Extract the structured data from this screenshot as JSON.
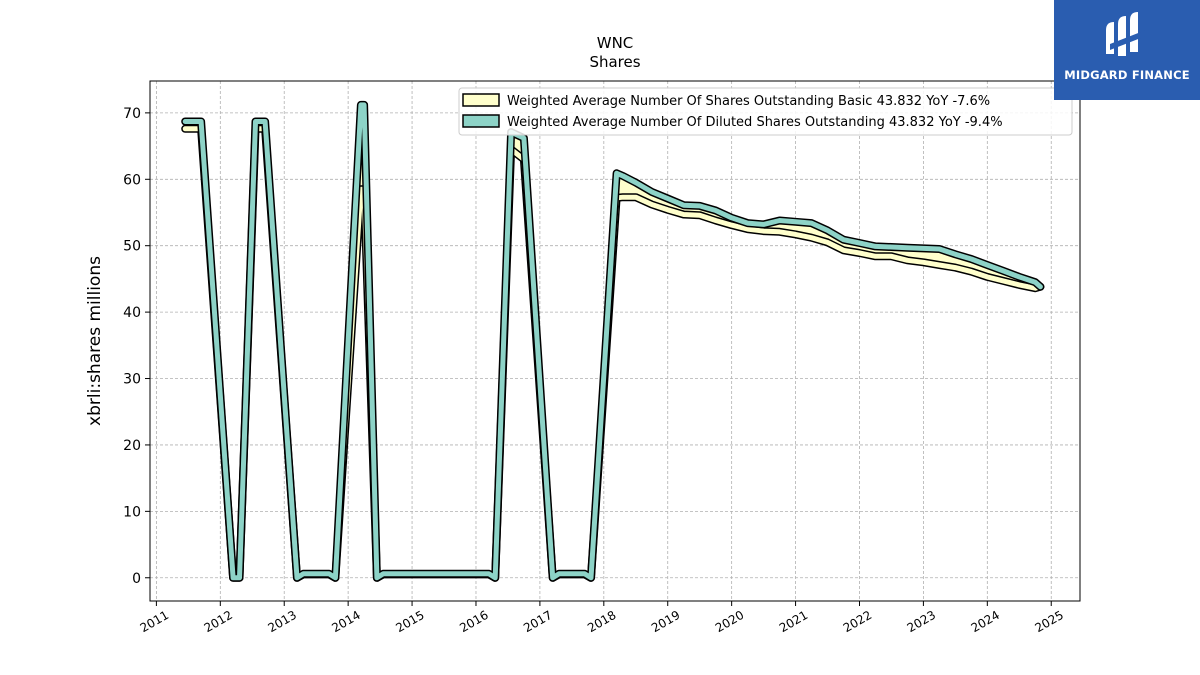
{
  "chart_data": {
    "type": "line",
    "title": "WNC",
    "subtitle": "Shares",
    "ylabel": "xbrli:shares millions",
    "xlabel": "",
    "ylim": [
      -3.5,
      74.8
    ],
    "xlim": [
      2010.9,
      2025.45
    ],
    "yticks": [
      0,
      10,
      20,
      30,
      40,
      50,
      60,
      70
    ],
    "xticks": [
      "2011",
      "2012",
      "2013",
      "2014",
      "2015",
      "2016",
      "2017",
      "2018",
      "2019",
      "2020",
      "2021",
      "2022",
      "2023",
      "2024",
      "2025"
    ],
    "grid": true,
    "legend_position": "top-right",
    "series": [
      {
        "name": "Weighted Average Number Of Shares Outstanding Basic  43.832 YoY -7.6%",
        "color": "#ffffcc",
        "x": [
          2011.45,
          2011.7,
          2012.2,
          2012.3,
          2012.55,
          2012.7,
          2013.2,
          2013.3,
          2013.7,
          2013.8,
          2014.2,
          2014.25,
          2014.45,
          2014.55,
          2016.2,
          2016.3,
          2016.55,
          2016.75,
          2017.2,
          2017.3,
          2017.7,
          2017.8,
          2018.2,
          2018.3,
          2018.5,
          2018.75,
          2019.0,
          2019.25,
          2019.5,
          2019.75,
          2020.0,
          2020.25,
          2020.5,
          2020.75,
          2021.0,
          2021.25,
          2021.5,
          2021.75,
          2022.0,
          2022.25,
          2022.5,
          2022.75,
          2023.0,
          2023.25,
          2023.5,
          2023.75,
          2024.0,
          2024.25,
          2024.5,
          2024.75,
          2024.83
        ],
        "values": [
          67.6,
          67.6,
          0,
          0,
          67.6,
          67.6,
          0,
          0.5,
          0.5,
          0,
          58.5,
          58.5,
          0,
          0.5,
          0.5,
          0,
          64.5,
          63.0,
          0,
          0.5,
          0.5,
          0,
          57.2,
          57.3,
          57.3,
          56.2,
          55.4,
          54.7,
          54.6,
          53.8,
          53.1,
          52.5,
          52.2,
          52.1,
          51.7,
          51.2,
          50.5,
          49.3,
          48.9,
          48.4,
          48.4,
          47.8,
          47.5,
          47.1,
          46.7,
          46.1,
          45.3,
          44.7,
          44.1,
          43.6,
          43.832
        ]
      },
      {
        "name": "Weighted Average Number Of Diluted Shares Outstanding  43.832 YoY -9.4%",
        "color": "#8dd3c7",
        "x": [
          2011.45,
          2011.7,
          2012.2,
          2012.3,
          2012.55,
          2012.7,
          2013.2,
          2013.3,
          2013.7,
          2013.8,
          2014.2,
          2014.25,
          2014.45,
          2014.55,
          2016.2,
          2016.3,
          2016.55,
          2016.75,
          2017.2,
          2017.3,
          2017.7,
          2017.8,
          2018.2,
          2018.3,
          2018.5,
          2018.75,
          2019.0,
          2019.25,
          2019.5,
          2019.75,
          2020.0,
          2020.25,
          2020.5,
          2020.75,
          2021.0,
          2021.25,
          2021.5,
          2021.75,
          2022.0,
          2022.25,
          2022.5,
          2022.75,
          2023.0,
          2023.25,
          2023.5,
          2023.75,
          2024.0,
          2024.25,
          2024.5,
          2024.75,
          2024.83
        ],
        "values": [
          68.7,
          68.7,
          0,
          0,
          68.7,
          68.7,
          0,
          0.6,
          0.6,
          0,
          71.2,
          71.2,
          0,
          0.6,
          0.6,
          0,
          67.1,
          66.2,
          0,
          0.6,
          0.6,
          0,
          60.9,
          60.5,
          59.5,
          58.1,
          57.1,
          56.1,
          56.0,
          55.3,
          54.2,
          53.4,
          53.2,
          53.8,
          53.6,
          53.4,
          52.3,
          50.9,
          50.4,
          49.9,
          49.8,
          49.7,
          49.6,
          49.5,
          48.7,
          48.0,
          47.1,
          46.2,
          45.3,
          44.5,
          43.832
        ]
      }
    ]
  },
  "logo": {
    "text": "MIDGARD FINANCE",
    "background": "#2a5db0"
  }
}
